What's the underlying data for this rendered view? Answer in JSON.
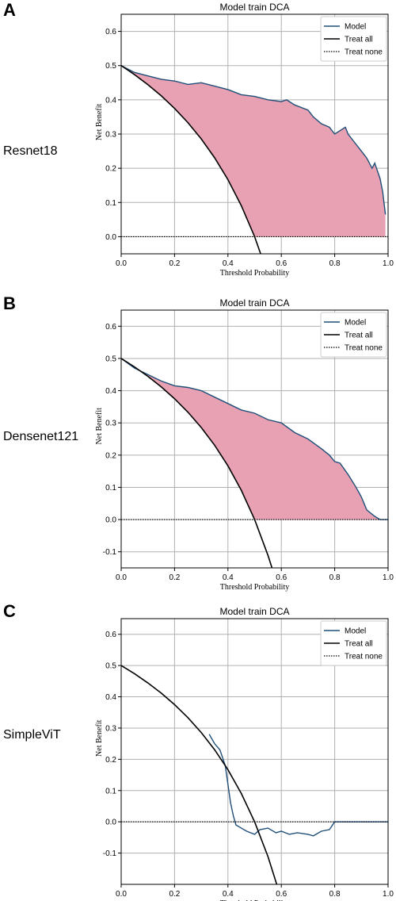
{
  "panels": [
    {
      "letter": "A",
      "row_label": "Resnet18"
    },
    {
      "letter": "B",
      "row_label": "Densenet121"
    },
    {
      "letter": "C",
      "row_label": "SimpleViT"
    }
  ],
  "colors": {
    "model": "#1f4e79",
    "treat_all": "#000000",
    "treat_none": "#000000",
    "fill": "#e8a1b2",
    "grid": "#b0b0b0"
  },
  "chart_data": [
    {
      "type": "line",
      "title": "Model train DCA",
      "xlabel": "Threshold Probability",
      "ylabel": "Net Benefit",
      "xlim": [
        0,
        1
      ],
      "ylim": [
        -0.05,
        0.65
      ],
      "xticks": [
        "0.0",
        "0.2",
        "0.4",
        "0.6",
        "0.8",
        "1.0"
      ],
      "yticks": [
        "0.0",
        "0.1",
        "0.2",
        "0.3",
        "0.4",
        "0.5",
        "0.6"
      ],
      "ytick_values": [
        0,
        0.1,
        0.2,
        0.3,
        0.4,
        0.5,
        0.6
      ],
      "grid": true,
      "legend": "top-right",
      "fill_between": true,
      "series": [
        {
          "name": "Model",
          "style": "solid",
          "x": [
            0,
            0.05,
            0.1,
            0.15,
            0.2,
            0.25,
            0.3,
            0.35,
            0.4,
            0.45,
            0.5,
            0.55,
            0.6,
            0.62,
            0.65,
            0.7,
            0.72,
            0.75,
            0.78,
            0.8,
            0.82,
            0.84,
            0.85,
            0.87,
            0.9,
            0.92,
            0.94,
            0.95,
            0.97,
            0.98,
            0.99
          ],
          "y": [
            0.5,
            0.48,
            0.47,
            0.46,
            0.455,
            0.445,
            0.45,
            0.44,
            0.43,
            0.415,
            0.41,
            0.4,
            0.395,
            0.4,
            0.385,
            0.37,
            0.35,
            0.33,
            0.32,
            0.3,
            0.31,
            0.32,
            0.3,
            0.28,
            0.25,
            0.23,
            0.2,
            0.215,
            0.17,
            0.13,
            0.065
          ]
        },
        {
          "name": "Treat all",
          "style": "solid",
          "x": [
            0,
            0.05,
            0.1,
            0.15,
            0.2,
            0.25,
            0.3,
            0.35,
            0.4,
            0.45,
            0.5,
            0.55
          ],
          "y": [
            0.5,
            0.4737,
            0.4444,
            0.4118,
            0.375,
            0.3333,
            0.2857,
            0.2308,
            0.1667,
            0.0909,
            0,
            -0.1111
          ]
        },
        {
          "name": "Treat none",
          "style": "dotted",
          "x": [
            0,
            1
          ],
          "y": [
            0,
            0
          ]
        }
      ]
    },
    {
      "type": "line",
      "title": "Model train DCA",
      "xlabel": "Threshold Probability",
      "ylabel": "Net Benefit",
      "xlim": [
        0,
        1
      ],
      "ylim": [
        -0.15,
        0.65
      ],
      "xticks": [
        "0.0",
        "0.2",
        "0.4",
        "0.6",
        "0.8",
        "1.0"
      ],
      "yticks": [
        "-0.1",
        "0.0",
        "0.1",
        "0.2",
        "0.3",
        "0.4",
        "0.5",
        "0.6"
      ],
      "ytick_values": [
        -0.1,
        0,
        0.1,
        0.2,
        0.3,
        0.4,
        0.5,
        0.6
      ],
      "grid": true,
      "legend": "top-right",
      "fill_between": true,
      "series": [
        {
          "name": "Model",
          "style": "solid",
          "x": [
            0,
            0.05,
            0.1,
            0.15,
            0.2,
            0.25,
            0.3,
            0.35,
            0.4,
            0.45,
            0.5,
            0.55,
            0.6,
            0.65,
            0.7,
            0.75,
            0.78,
            0.8,
            0.82,
            0.85,
            0.88,
            0.9,
            0.92,
            0.95,
            0.97,
            1.0
          ],
          "y": [
            0.5,
            0.47,
            0.45,
            0.43,
            0.415,
            0.41,
            0.4,
            0.38,
            0.36,
            0.34,
            0.33,
            0.31,
            0.3,
            0.27,
            0.25,
            0.22,
            0.2,
            0.18,
            0.175,
            0.14,
            0.1,
            0.07,
            0.03,
            0.01,
            0.0,
            0.0
          ]
        },
        {
          "name": "Treat all",
          "style": "solid",
          "x": [
            0,
            0.05,
            0.1,
            0.15,
            0.2,
            0.25,
            0.3,
            0.35,
            0.4,
            0.45,
            0.5,
            0.55,
            0.57
          ],
          "y": [
            0.5,
            0.4737,
            0.4444,
            0.4118,
            0.375,
            0.3333,
            0.2857,
            0.2308,
            0.1667,
            0.0909,
            0,
            -0.1111,
            -0.1628
          ]
        },
        {
          "name": "Treat none",
          "style": "dotted",
          "x": [
            0,
            1
          ],
          "y": [
            0,
            0
          ]
        }
      ]
    },
    {
      "type": "line",
      "title": "Model train DCA",
      "xlabel": "Threshold Probability",
      "ylabel": "Net Benefit",
      "xlim": [
        0,
        1
      ],
      "ylim": [
        -0.2,
        0.65
      ],
      "xticks": [
        "0.0",
        "0.2",
        "0.4",
        "0.6",
        "0.8",
        "1.0"
      ],
      "yticks": [
        "-0.1",
        "0.0",
        "0.1",
        "0.2",
        "0.3",
        "0.4",
        "0.5",
        "0.6"
      ],
      "ytick_values": [
        -0.1,
        0,
        0.1,
        0.2,
        0.3,
        0.4,
        0.5,
        0.6
      ],
      "grid": true,
      "legend": "top-right",
      "fill_between": false,
      "series": [
        {
          "name": "Model",
          "style": "solid",
          "x": [
            0.33,
            0.35,
            0.37,
            0.39,
            0.4,
            0.41,
            0.42,
            0.43,
            0.45,
            0.47,
            0.5,
            0.52,
            0.55,
            0.58,
            0.6,
            0.63,
            0.66,
            0.7,
            0.72,
            0.75,
            0.78,
            0.8,
            0.85,
            0.9,
            1.0
          ],
          "y": [
            0.28,
            0.25,
            0.23,
            0.18,
            0.12,
            0.06,
            0.02,
            -0.01,
            -0.02,
            -0.03,
            -0.04,
            -0.025,
            -0.02,
            -0.035,
            -0.03,
            -0.04,
            -0.035,
            -0.04,
            -0.045,
            -0.03,
            -0.025,
            0.0,
            0.0,
            0.0,
            0.0
          ]
        },
        {
          "name": "Treat all",
          "style": "solid",
          "x": [
            0,
            0.05,
            0.1,
            0.15,
            0.2,
            0.25,
            0.3,
            0.35,
            0.4,
            0.45,
            0.5,
            0.55,
            0.59
          ],
          "y": [
            0.5,
            0.4737,
            0.4444,
            0.4118,
            0.375,
            0.3333,
            0.2857,
            0.2308,
            0.1667,
            0.0909,
            0,
            -0.1111,
            -0.2195
          ]
        },
        {
          "name": "Treat none",
          "style": "dotted",
          "x": [
            0,
            1
          ],
          "y": [
            0,
            0
          ]
        }
      ]
    }
  ]
}
